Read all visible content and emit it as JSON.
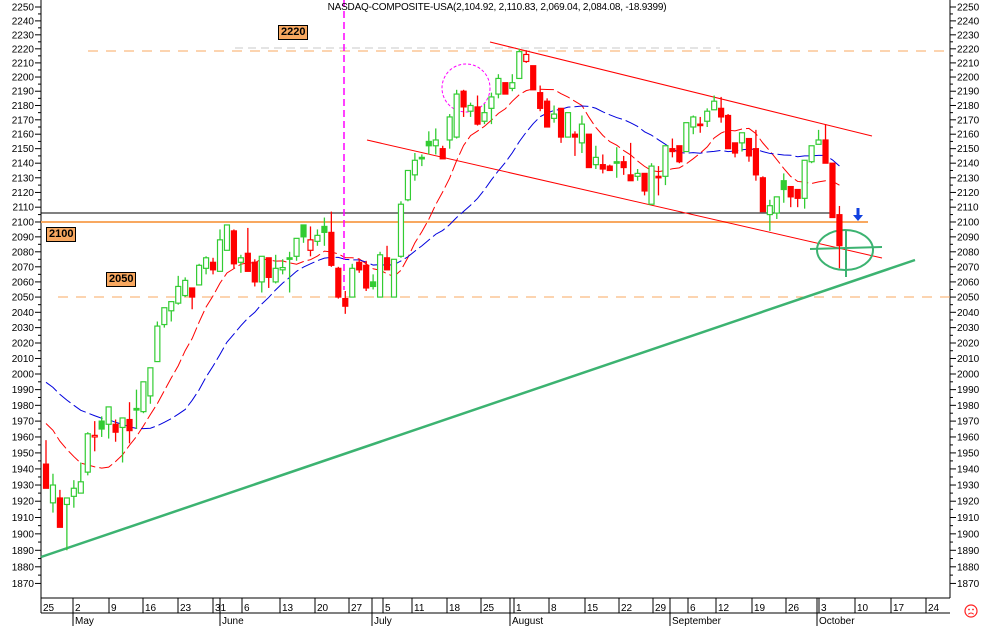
{
  "chart_data": {
    "type": "candlestick",
    "title": "NASDAQ-COMPOSITE-USA(2,104.92, 2,110.83, 2,069.04, 2,084.08, -18.9399)",
    "y_scale": "log",
    "ylim": [
      1860,
      2256
    ],
    "y_ticks": [
      1870,
      1880,
      1890,
      1900,
      1910,
      1920,
      1930,
      1940,
      1950,
      1960,
      1970,
      1980,
      1990,
      2000,
      2010,
      2020,
      2030,
      2040,
      2050,
      2060,
      2070,
      2080,
      2090,
      2100,
      2110,
      2120,
      2130,
      2140,
      2150,
      2160,
      2170,
      2180,
      2190,
      2200,
      2210,
      2220,
      2230,
      2240,
      2250
    ],
    "y_axis_sides": "left and right",
    "x_tick_labels": [
      "25",
      "2",
      "9",
      "16",
      "23",
      "31",
      "6",
      "13",
      "20",
      "27",
      "5",
      "11",
      "18",
      "25",
      "1",
      "8",
      "15",
      "22",
      "29",
      "6",
      "12",
      "19",
      "26",
      "3",
      "10",
      "17",
      "24"
    ],
    "month_labels": [
      "May",
      "June",
      "July",
      "August",
      "September",
      "October"
    ],
    "candles_ohlc": [
      [
        1943,
        1958,
        1928,
        1928
      ],
      [
        1919,
        1937,
        1913,
        1930
      ],
      [
        1922,
        1927,
        1904,
        1904
      ],
      [
        1918,
        1922,
        1890,
        1922
      ],
      [
        1923,
        1933,
        1916,
        1928
      ],
      [
        1925,
        1944,
        1925,
        1932
      ],
      [
        1938,
        1963,
        1936,
        1962
      ],
      [
        1960,
        1970,
        1951,
        1961
      ],
      [
        1970,
        1973,
        1960,
        1965
      ],
      [
        1968,
        1979,
        1959,
        1979
      ],
      [
        1968,
        1971,
        1957,
        1963
      ],
      [
        1966,
        1972,
        1944,
        1972
      ],
      [
        1971,
        1982,
        1956,
        1964
      ],
      [
        1978,
        1990,
        1965,
        1977
      ],
      [
        1976,
        1995,
        1975,
        1995
      ],
      [
        1986,
        2004,
        1981,
        2004
      ],
      [
        2008,
        2034,
        2008,
        2031
      ],
      [
        2032,
        2043,
        2030,
        2043
      ],
      [
        2041,
        2047,
        2034,
        2047
      ],
      [
        2046,
        2064,
        2045,
        2057
      ],
      [
        2051,
        2063,
        2050,
        2061
      ],
      [
        2056,
        2056,
        2042,
        2050
      ],
      [
        2058,
        2072,
        2058,
        2071
      ],
      [
        2069,
        2077,
        2065,
        2076
      ],
      [
        2073,
        2076,
        2065,
        2068
      ],
      [
        2067,
        2095,
        2067,
        2088
      ],
      [
        2081,
        2098,
        2081,
        2098
      ],
      [
        2094,
        2095,
        2069,
        2072
      ],
      [
        2073,
        2078,
        2066,
        2076
      ],
      [
        2079,
        2096,
        2067,
        2067
      ],
      [
        2073,
        2075,
        2057,
        2060
      ],
      [
        2060,
        2077,
        2053,
        2077
      ],
      [
        2076,
        2076,
        2056,
        2063
      ],
      [
        2060,
        2078,
        2059,
        2069
      ],
      [
        2068,
        2075,
        2065,
        2069.5
      ],
      [
        2076,
        2080,
        2053,
        2075
      ],
      [
        2077,
        2089,
        2074,
        2089
      ],
      [
        2098,
        2098,
        2086,
        2090
      ],
      [
        2081,
        2097,
        2077,
        2088
      ],
      [
        2087,
        2095,
        2084,
        2091
      ],
      [
        2097,
        2103,
        2084,
        2093
      ],
      [
        2093,
        2107,
        2070,
        2071
      ],
      [
        2069,
        2070,
        2049,
        2050
      ],
      [
        2049,
        2054,
        2039,
        2044
      ],
      [
        2050,
        2072,
        2050,
        2069
      ],
      [
        2073,
        2075,
        2066,
        2068
      ],
      [
        2071,
        2074,
        2054,
        2056
      ],
      [
        2060,
        2065,
        2055,
        2057
      ],
      [
        2050,
        2080,
        2050,
        2078
      ],
      [
        2076,
        2084,
        2068,
        2068
      ],
      [
        2050,
        2075,
        2050,
        2075
      ],
      [
        2077,
        2114,
        2076,
        2112
      ],
      [
        2115,
        2135,
        2114,
        2135
      ],
      [
        2132,
        2147,
        2128,
        2142
      ],
      [
        2144,
        2146,
        2138,
        2143
      ],
      [
        2155,
        2162,
        2146,
        2152
      ],
      [
        2152,
        2164,
        2146,
        2156
      ],
      [
        2150,
        2152,
        2143,
        2143
      ],
      [
        2156,
        2174,
        2150,
        2172
      ],
      [
        2158,
        2191,
        2157,
        2188
      ],
      [
        2190,
        2191,
        2172,
        2179
      ],
      [
        2176,
        2182,
        2172,
        2180
      ],
      [
        2179,
        2187,
        2166,
        2167
      ],
      [
        2169,
        2181,
        2167,
        2175
      ],
      [
        2178,
        2189,
        2167,
        2186
      ],
      [
        2188,
        2202,
        2185,
        2199
      ],
      [
        2196,
        2196,
        2188,
        2188
      ],
      [
        2192,
        2202,
        2190,
        2196
      ],
      [
        2199,
        2220,
        2199,
        2218
      ],
      [
        2211,
        2219,
        2210,
        2216
      ],
      [
        2208,
        2208,
        2191,
        2191
      ],
      [
        2189,
        2194,
        2176,
        2178
      ],
      [
        2183,
        2185,
        2165,
        2165
      ],
      [
        2171,
        2180,
        2168,
        2174
      ],
      [
        2178,
        2178,
        2154,
        2158
      ],
      [
        2158,
        2175,
        2158,
        2175
      ],
      [
        2160,
        2162,
        2145,
        2158
      ],
      [
        2154,
        2173,
        2147,
        2167
      ],
      [
        2160,
        2160,
        2137,
        2137
      ],
      [
        2139,
        2152,
        2136,
        2144
      ],
      [
        2139,
        2146,
        2133,
        2136
      ],
      [
        2138,
        2139,
        2135,
        2135
      ],
      [
        2141,
        2151,
        2130,
        2140
      ],
      [
        2141,
        2145,
        2132,
        2137
      ],
      [
        2132,
        2154,
        2128,
        2128
      ],
      [
        2131,
        2136,
        2128,
        2133
      ],
      [
        2133,
        2133,
        2118,
        2121
      ],
      [
        2112,
        2140,
        2112,
        2138
      ],
      [
        2131,
        2138,
        2118,
        2130
      ],
      [
        2131,
        2152,
        2125,
        2152
      ],
      [
        2150,
        2157,
        2144,
        2148
      ],
      [
        2152,
        2152,
        2140,
        2141
      ],
      [
        2148,
        2168,
        2148,
        2168
      ],
      [
        2165,
        2173,
        2160,
        2172
      ],
      [
        2167,
        2172,
        2161,
        2166
      ],
      [
        2169,
        2178,
        2165,
        2176
      ],
      [
        2177,
        2187,
        2177,
        2183
      ],
      [
        2178,
        2186,
        2168,
        2172
      ],
      [
        2173,
        2174,
        2150,
        2150
      ],
      [
        2154,
        2154,
        2144,
        2147
      ],
      [
        2154,
        2161,
        2148,
        2161
      ],
      [
        2157,
        2157,
        2141,
        2145
      ],
      [
        2150,
        2163,
        2128,
        2132
      ],
      [
        2130,
        2131,
        2107,
        2107
      ],
      [
        2105,
        2115,
        2094,
        2111
      ],
      [
        2106,
        2117,
        2102,
        2117
      ],
      [
        2128,
        2133,
        2113,
        2122
      ],
      [
        2124,
        2124,
        2110,
        2117
      ],
      [
        2122,
        2122,
        2110,
        2116
      ],
      [
        2116,
        2142,
        2109,
        2142
      ],
      [
        2141,
        2152,
        2140,
        2152
      ],
      [
        2153,
        2163,
        2153,
        2156
      ],
      [
        2156,
        2167,
        2140,
        2140
      ],
      [
        2140,
        2140,
        2103,
        2103
      ],
      [
        2104.92,
        2110.83,
        2069.04,
        2084.08
      ]
    ],
    "level_labels": {
      "l2220": "2220",
      "l2100": "2100",
      "l2050": "2050"
    },
    "grid": false,
    "colors": {
      "up": "#33cc33",
      "down": "#ff0000",
      "fast_ma": "#ff0000",
      "slow_ma": "#0000dd",
      "level_line": "#f8a860",
      "trendline": "#3cb371",
      "channel": "#ff0000",
      "marker": "#ff00ff",
      "arrow": "#1040e0"
    }
  },
  "status_icon": "sad-face-icon"
}
